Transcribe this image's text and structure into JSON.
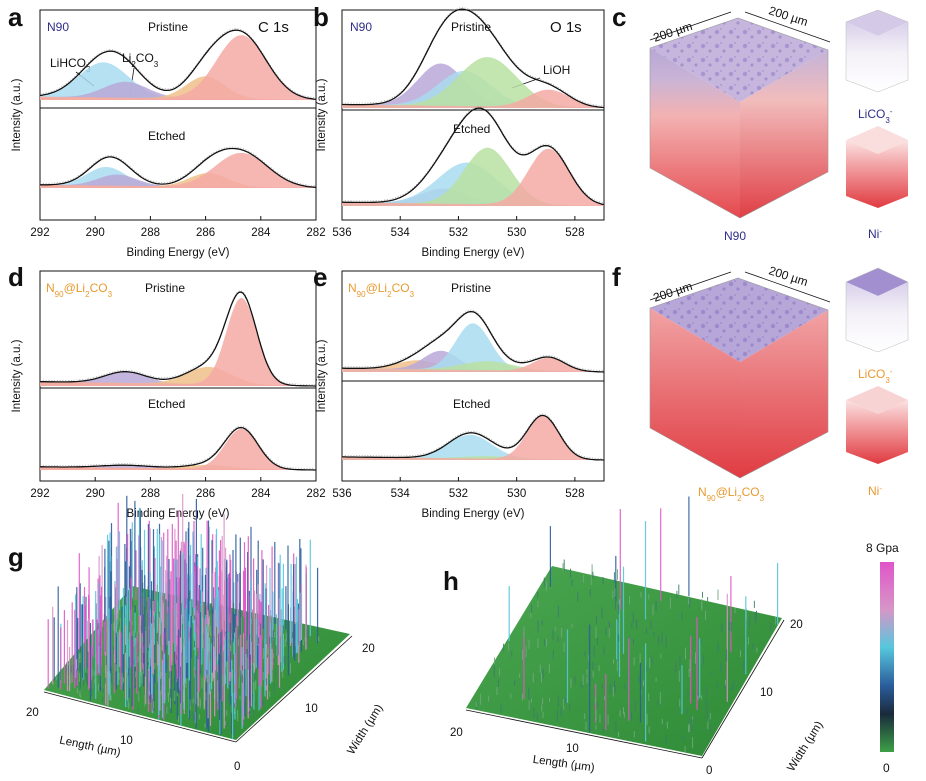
{
  "colors": {
    "n90": "#2e2e8a",
    "coated": "#e89a2e",
    "c1": "#f4a9a5",
    "c2": "#a9dcf0",
    "c3": "#b9a8d8",
    "c4": "#f0c08a",
    "c5": "#b9e0a2",
    "red": "#e5484d",
    "lavender": "#7d5fc2"
  },
  "panels": {
    "a": {
      "label": "a",
      "sample": "N90",
      "spectrum": "C 1s",
      "top_state": "Pristine",
      "bottom_state": "Etched",
      "ann1": "LiHCO3",
      "ann2": "Li2CO3"
    },
    "b": {
      "label": "b",
      "sample": "N90",
      "spectrum": "O 1s",
      "top_state": "Pristine",
      "bottom_state": "Etched",
      "ann1": "LiOH"
    },
    "c": {
      "label": "c",
      "dim1": "200 µm",
      "dim2": "200 µm",
      "caption": "N90",
      "ion1": "LiCO3-",
      "ion2": "Ni-"
    },
    "d": {
      "label": "d",
      "sample": "N90@Li2CO3",
      "top_state": "Pristine",
      "bottom_state": "Etched"
    },
    "e": {
      "label": "e",
      "sample": "N90@Li2CO3",
      "top_state": "Pristine",
      "bottom_state": "Etched"
    },
    "f": {
      "label": "f",
      "dim1": "200 µm",
      "dim2": "200 µm",
      "caption": "N90@Li2CO3",
      "ion1": "LiCO3-",
      "ion2": "Ni-"
    },
    "g": {
      "label": "g",
      "x_label": "Length (µm)",
      "y_label": "Width (µm)"
    },
    "h": {
      "label": "h",
      "x_label": "Length (µm)",
      "y_label": "Width (µm)"
    }
  },
  "colorbar": {
    "max_label": "8 Gpa",
    "min_label": "0"
  },
  "chart_data": [
    {
      "id": "a",
      "type": "line",
      "title": "N90 C 1s",
      "xlabel": "Binding Energy (eV)",
      "ylabel": "Intensity (a.u.)",
      "xlim": [
        292,
        282
      ],
      "xticks": [
        "292",
        "290",
        "288",
        "286",
        "284",
        "282"
      ],
      "series": [
        {
          "name": "Pristine",
          "peaks": [
            {
              "center": 289.7,
              "height": 0.55,
              "width": 0.9,
              "color": "c2"
            },
            {
              "center": 288.9,
              "height": 0.25,
              "width": 0.8,
              "color": "c3"
            },
            {
              "center": 286.0,
              "height": 0.35,
              "width": 0.7,
              "color": "c4"
            },
            {
              "center": 284.7,
              "height": 1.0,
              "width": 0.9,
              "color": "c1"
            }
          ]
        },
        {
          "name": "Etched",
          "peaks": [
            {
              "center": 289.6,
              "height": 0.3,
              "width": 0.7,
              "color": "c2"
            },
            {
              "center": 289.2,
              "height": 0.18,
              "width": 0.7,
              "color": "c3"
            },
            {
              "center": 285.9,
              "height": 0.22,
              "width": 0.7,
              "color": "c4"
            },
            {
              "center": 284.7,
              "height": 0.55,
              "width": 0.95,
              "color": "c1"
            }
          ]
        }
      ]
    },
    {
      "id": "b",
      "type": "line",
      "title": "N90 O 1s",
      "xlabel": "Binding Energy (eV)",
      "ylabel": "Intensity (a.u.)",
      "xlim": [
        536,
        527
      ],
      "xticks": [
        "536",
        "534",
        "532",
        "530",
        "528"
      ],
      "series": [
        {
          "name": "Pristine",
          "peaks": [
            {
              "center": 532.6,
              "height": 0.6,
              "width": 0.8,
              "color": "c3"
            },
            {
              "center": 531.8,
              "height": 0.5,
              "width": 0.9,
              "color": "c2"
            },
            {
              "center": 531.0,
              "height": 0.7,
              "width": 1.0,
              "color": "c5"
            },
            {
              "center": 528.9,
              "height": 0.25,
              "width": 0.7,
              "color": "c1"
            }
          ]
        },
        {
          "name": "Etched",
          "peaks": [
            {
              "center": 532.5,
              "height": 0.2,
              "width": 0.8,
              "color": "c3"
            },
            {
              "center": 531.7,
              "height": 0.55,
              "width": 1.0,
              "color": "c2"
            },
            {
              "center": 531.0,
              "height": 0.75,
              "width": 0.8,
              "color": "c5"
            },
            {
              "center": 528.9,
              "height": 0.75,
              "width": 0.7,
              "color": "c1"
            }
          ]
        }
      ]
    },
    {
      "id": "d",
      "type": "line",
      "title": "N90@Li2CO3 C 1s",
      "xlabel": "Binding Energy (eV)",
      "ylabel": "Intensity (a.u.)",
      "xlim": [
        292,
        282
      ],
      "xticks": [
        "292",
        "290",
        "288",
        "286",
        "284",
        "282"
      ],
      "series": [
        {
          "name": "Pristine",
          "peaks": [
            {
              "center": 288.9,
              "height": 0.13,
              "width": 0.75,
              "color": "c3"
            },
            {
              "center": 285.9,
              "height": 0.2,
              "width": 0.8,
              "color": "c4"
            },
            {
              "center": 284.7,
              "height": 1.0,
              "width": 0.55,
              "color": "c1"
            }
          ]
        },
        {
          "name": "Etched",
          "peaks": [
            {
              "center": 288.9,
              "height": 0.04,
              "width": 0.9,
              "color": "c3"
            },
            {
              "center": 285.9,
              "height": 0.06,
              "width": 0.8,
              "color": "c4"
            },
            {
              "center": 284.7,
              "height": 0.63,
              "width": 0.6,
              "color": "c1"
            }
          ]
        }
      ]
    },
    {
      "id": "e",
      "type": "line",
      "title": "N90@Li2CO3 O 1s",
      "xlabel": "Binding Energy (eV)",
      "ylabel": "Intensity (a.u.)",
      "xlim": [
        536,
        527
      ],
      "xticks": [
        "536",
        "534",
        "532",
        "530",
        "528"
      ],
      "series": [
        {
          "name": "Pristine",
          "peaks": [
            {
              "center": 533.4,
              "height": 0.12,
              "width": 0.7,
              "color": "c4"
            },
            {
              "center": 532.6,
              "height": 0.25,
              "width": 0.6,
              "color": "c3"
            },
            {
              "center": 531.5,
              "height": 0.62,
              "width": 0.6,
              "color": "c2"
            },
            {
              "center": 531.0,
              "height": 0.12,
              "width": 0.9,
              "color": "c5"
            },
            {
              "center": 528.9,
              "height": 0.18,
              "width": 0.55,
              "color": "c1"
            }
          ]
        },
        {
          "name": "Etched",
          "peaks": [
            {
              "center": 531.6,
              "height": 0.38,
              "width": 0.75,
              "color": "c2"
            },
            {
              "center": 531.0,
              "height": 0.04,
              "width": 0.8,
              "color": "c5"
            },
            {
              "center": 529.1,
              "height": 0.7,
              "width": 0.55,
              "color": "c1"
            }
          ]
        }
      ]
    }
  ]
}
